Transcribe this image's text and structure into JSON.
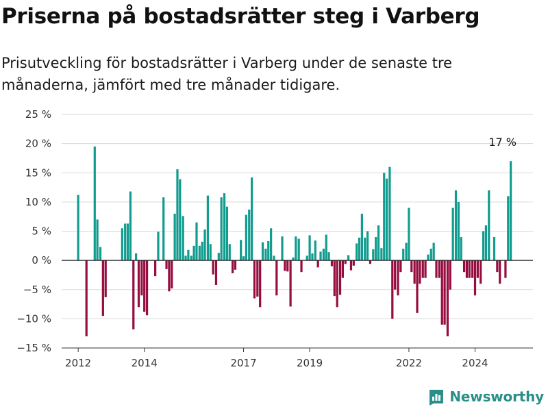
{
  "page": {
    "title": "Priserna på bostadsrätter steg i Varberg",
    "subtitle": "Prisutveckling för bostadsrätter i Varberg under de senaste tre månaderna, jämfört med tre månader tidigare.",
    "brand": "Newsworthy"
  },
  "colors": {
    "positive": "#119c8f",
    "negative": "#960d3f",
    "grid": "#d9d9d9",
    "zero_line": "#222222",
    "brand": "#2a8f88"
  },
  "chart_data": {
    "type": "bar",
    "title": "Priserna på bostadsrätter steg i Varberg",
    "ylabel": "",
    "xlabel": "",
    "y_ticks": [
      -15,
      -10,
      -5,
      0,
      5,
      10,
      15,
      20,
      25
    ],
    "y_tick_labels": [
      "−15 %",
      "−10 %",
      "−5 %",
      "0 %",
      "5 %",
      "10 %",
      "15 %",
      "20 %",
      "25 %"
    ],
    "ylim": [
      -15,
      25
    ],
    "xlim": [
      2011.5,
      2025.75
    ],
    "x_ticks": [
      2012,
      2014,
      2017,
      2019,
      2022,
      2024
    ],
    "x_tick_labels": [
      "2012",
      "2014",
      "2017",
      "2019",
      "2022",
      "2024"
    ],
    "grid": true,
    "annotation": {
      "text": "17 %",
      "x": 2025.08,
      "y": 17
    },
    "x": [
      2012.0,
      2012.25,
      2012.5,
      2012.58,
      2012.67,
      2012.75,
      2012.83,
      2012.92,
      2013.33,
      2013.42,
      2013.5,
      2013.58,
      2013.67,
      2013.75,
      2013.83,
      2013.92,
      2014.0,
      2014.08,
      2014.17,
      2014.33,
      2014.42,
      2014.5,
      2014.58,
      2014.67,
      2014.75,
      2014.83,
      2014.92,
      2015.0,
      2015.08,
      2015.17,
      2015.25,
      2015.33,
      2015.42,
      2015.5,
      2015.58,
      2015.67,
      2015.75,
      2015.83,
      2015.92,
      2016.0,
      2016.08,
      2016.17,
      2016.25,
      2016.33,
      2016.42,
      2016.5,
      2016.58,
      2016.67,
      2016.75,
      2016.92,
      2017.0,
      2017.08,
      2017.17,
      2017.25,
      2017.33,
      2017.42,
      2017.5,
      2017.58,
      2017.67,
      2017.75,
      2017.83,
      2017.92,
      2018.0,
      2018.17,
      2018.25,
      2018.33,
      2018.42,
      2018.5,
      2018.58,
      2018.67,
      2018.75,
      2018.92,
      2019.0,
      2019.08,
      2019.17,
      2019.25,
      2019.33,
      2019.42,
      2019.5,
      2019.58,
      2019.67,
      2019.75,
      2019.83,
      2019.92,
      2020.0,
      2020.08,
      2020.17,
      2020.25,
      2020.33,
      2020.42,
      2020.5,
      2020.58,
      2020.67,
      2020.75,
      2020.83,
      2020.92,
      2021.0,
      2021.08,
      2021.17,
      2021.25,
      2021.33,
      2021.42,
      2021.5,
      2021.58,
      2021.67,
      2021.75,
      2021.83,
      2021.92,
      2022.0,
      2022.08,
      2022.17,
      2022.25,
      2022.33,
      2022.42,
      2022.5,
      2022.58,
      2022.67,
      2022.75,
      2022.83,
      2022.92,
      2023.0,
      2023.08,
      2023.17,
      2023.25,
      2023.33,
      2023.42,
      2023.5,
      2023.58,
      2023.67,
      2023.75,
      2023.83,
      2023.92,
      2024.0,
      2024.08,
      2024.17,
      2024.25,
      2024.33,
      2024.42,
      2024.58,
      2024.67,
      2024.75,
      2024.92,
      2025.0,
      2025.08
    ],
    "values": [
      11.2,
      -13,
      19.5,
      7,
      2.3,
      -9.5,
      -6.3,
      0,
      5.5,
      6.3,
      6.3,
      11.8,
      -11.8,
      1.2,
      -8,
      -6,
      -8.8,
      -9.4,
      0,
      -2.7,
      4.9,
      0,
      10.8,
      -1.5,
      -5.3,
      -4.8,
      8,
      15.6,
      13.9,
      7.6,
      0.8,
      1.8,
      0.8,
      2.5,
      6.5,
      2.5,
      3.2,
      5.3,
      11.1,
      2.8,
      -2.4,
      -4.2,
      1.3,
      10.8,
      11.5,
      9.2,
      2.8,
      -2.2,
      -1.6,
      3.5,
      0.7,
      7.8,
      8.7,
      14.2,
      -6.5,
      -6.2,
      -8,
      3.1,
      2,
      3.3,
      5.5,
      0.8,
      -6,
      4.1,
      -1.8,
      -1.9,
      -7.9,
      0.5,
      4.1,
      3.7,
      -2,
      0.8,
      4.3,
      1.2,
      3.4,
      -1.2,
      1.5,
      2,
      4.4,
      1.4,
      -1,
      -6.1,
      -8,
      -5.9,
      -3,
      -0.6,
      0.9,
      -1.7,
      -0.9,
      2.9,
      3.9,
      8,
      3.9,
      5,
      -0.6,
      1.9,
      4,
      6,
      2.1,
      15,
      14,
      16,
      -10,
      -5,
      -6,
      -2,
      2,
      3,
      9,
      -2,
      -4,
      -9,
      -4,
      -3,
      -3,
      1,
      2,
      3,
      -3,
      -3,
      -11,
      -11,
      -13,
      -5,
      9,
      12,
      10,
      4,
      -2,
      -3,
      -3,
      -3,
      -6,
      -3,
      -4,
      5,
      6,
      12,
      4,
      -2,
      -4,
      -3,
      11,
      17
    ]
  }
}
